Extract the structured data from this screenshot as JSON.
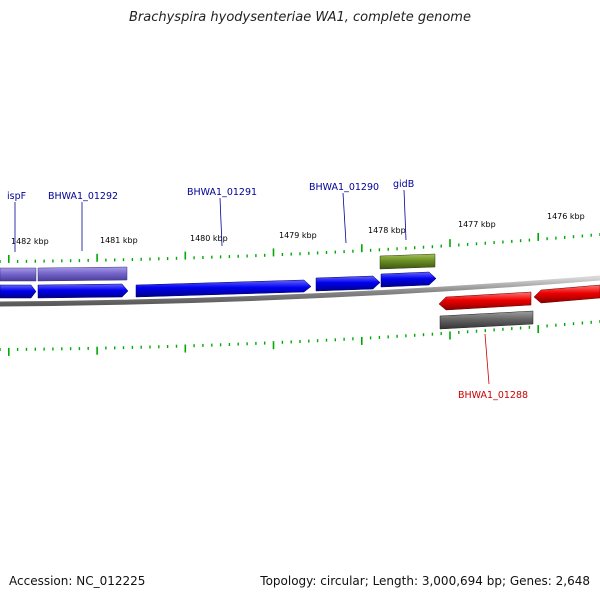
{
  "title": "Brachyspira hyodysenteriae WA1, complete genome",
  "footer": {
    "accession_label": "Accession:",
    "accession": "NC_012225",
    "topology_label": "Topology:",
    "topology": "circular",
    "length_label": "Length:",
    "length": "3,000,694 bp",
    "genes_label": "Genes:",
    "genes": "2,648"
  },
  "colors": {
    "forward_gene": "#0000ee",
    "forward_gene_rna": "#7766cc",
    "reverse_gene": "#ee0000",
    "rna_gene": "#6b8e23",
    "reverse_secondary": "#666666",
    "tick": "#00aa00",
    "label_forward": "#000099",
    "label_reverse": "#cc0000",
    "backbone": "#999999"
  },
  "ticks": [
    {
      "label": "1482 kbp"
    },
    {
      "label": "1481 kbp"
    },
    {
      "label": "1480 kbp"
    },
    {
      "label": "1479 kbp"
    },
    {
      "label": "1478 kbp"
    },
    {
      "label": "1477 kbp"
    },
    {
      "label": "1476 kbp"
    }
  ],
  "gene_labels": [
    {
      "name": "ispF",
      "strand": "forward"
    },
    {
      "name": "BHWA1_01292",
      "strand": "forward"
    },
    {
      "name": "BHWA1_01291",
      "strand": "forward"
    },
    {
      "name": "BHWA1_01290",
      "strand": "forward"
    },
    {
      "name": "gidB",
      "strand": "forward"
    },
    {
      "name": "BHWA1_01288",
      "strand": "reverse"
    }
  ]
}
